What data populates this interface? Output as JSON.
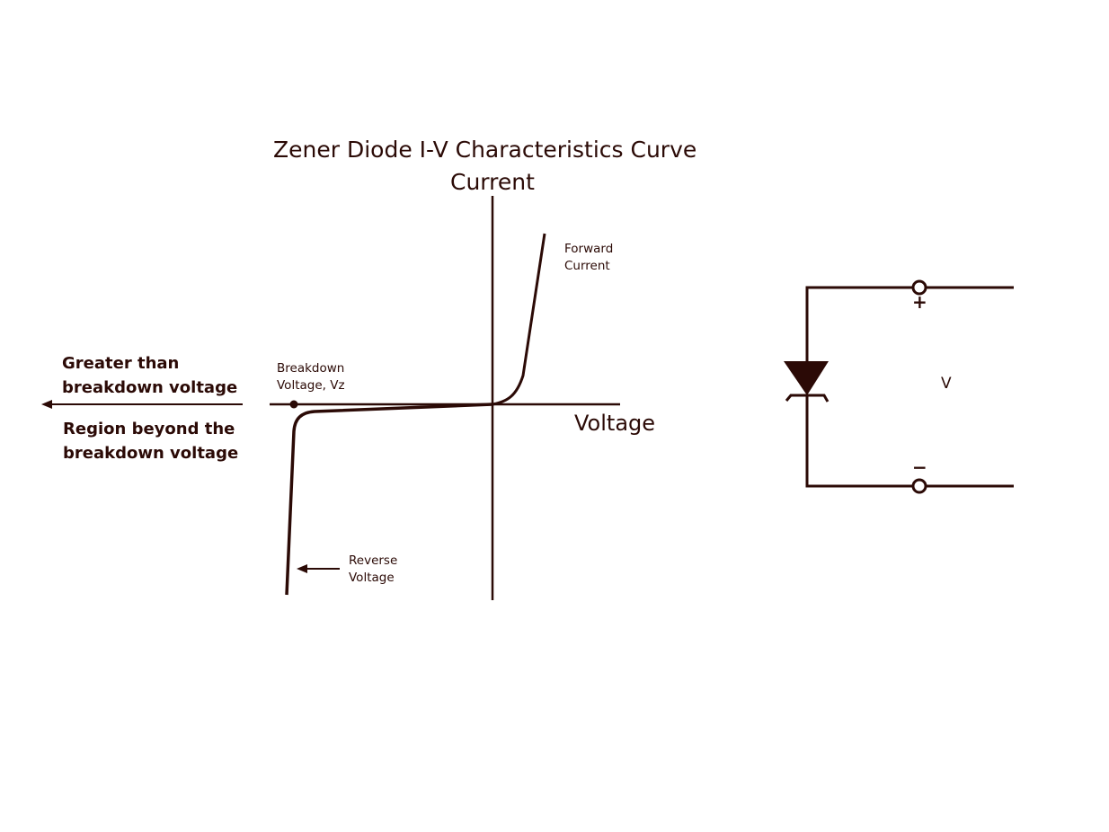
{
  "diagram": {
    "title": "Zener Diode I-V Characteristics Curve",
    "y_axis_label": "Current",
    "x_axis_label": "Voltage",
    "forward_current_label": [
      "Forward",
      "Current"
    ],
    "breakdown_label": [
      "Breakdown",
      "Voltage, Vz"
    ],
    "reverse_voltage_label": [
      "Reverse",
      "Voltage"
    ],
    "greater_than_label": [
      "Greater than",
      "breakdown voltage"
    ],
    "region_beyond_label": [
      "Region beyond the",
      "breakdown voltage"
    ]
  },
  "circuit": {
    "voltage_label": "V",
    "plus_sign": "+",
    "minus_sign": "−",
    "component": "zener-diode-icon"
  },
  "colors": {
    "ink": "#2b0a06",
    "background": "#ffffff"
  }
}
